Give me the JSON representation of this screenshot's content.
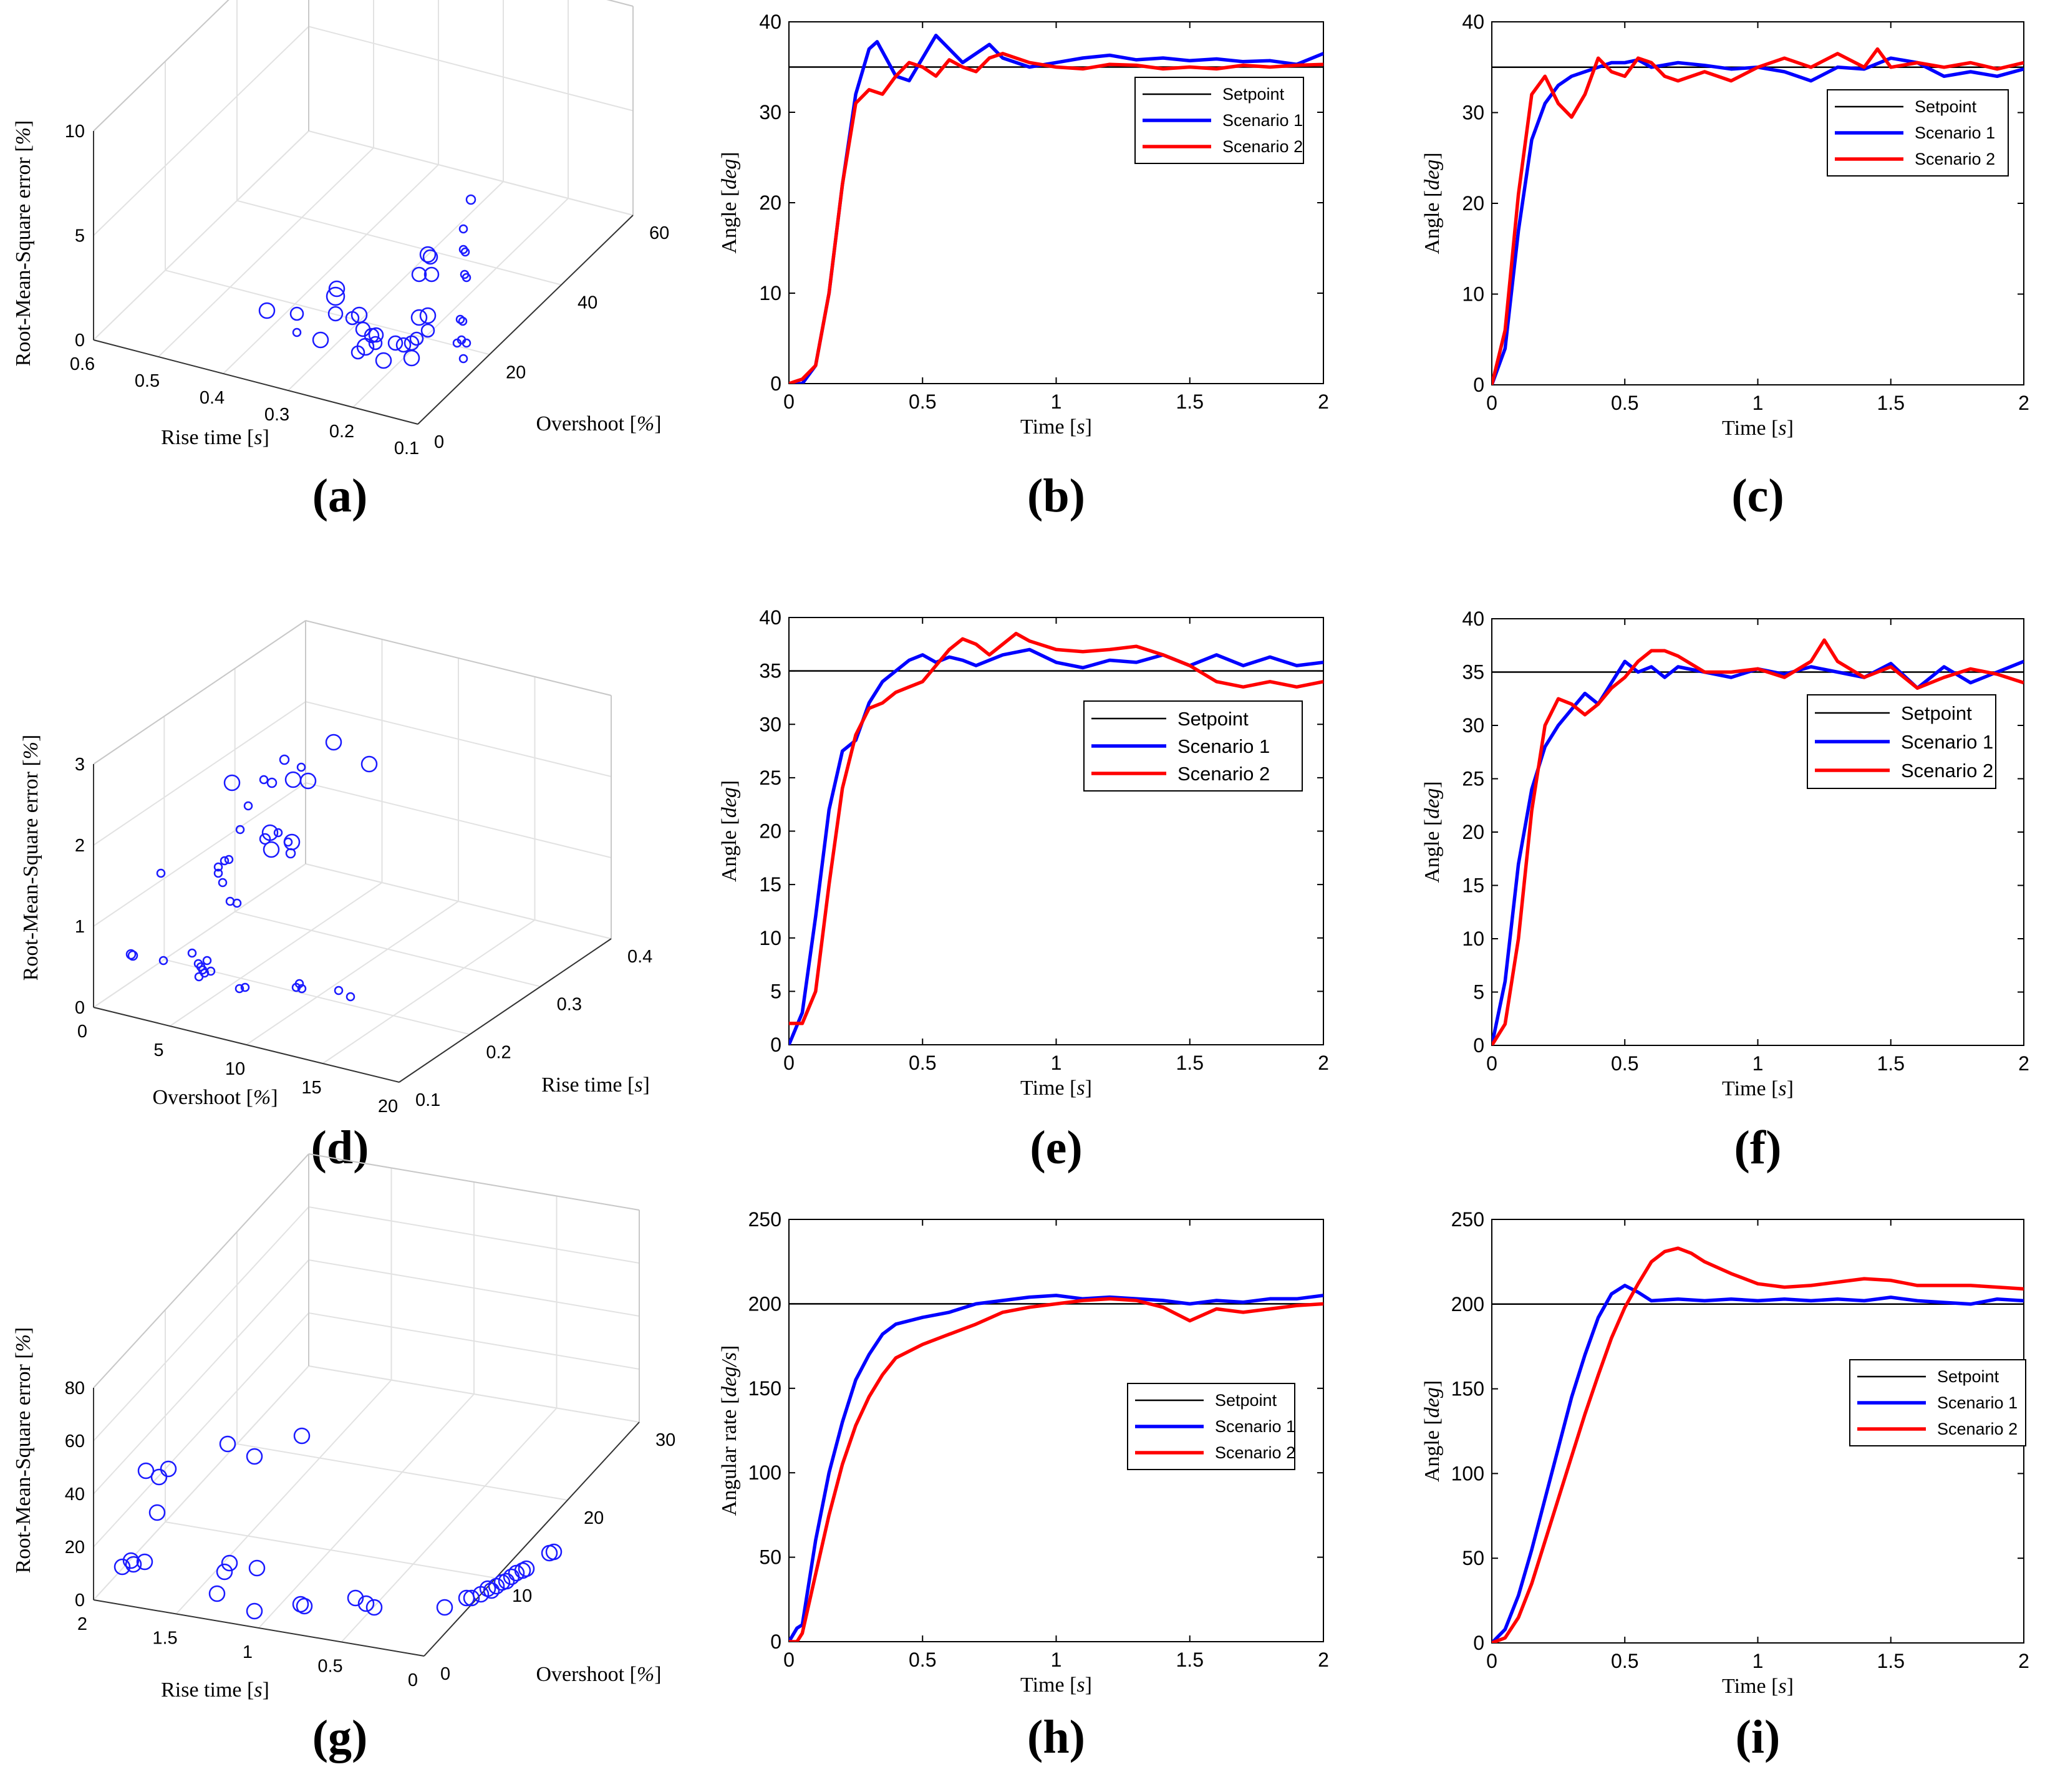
{
  "chart_data": [
    {
      "id": "a",
      "type": "scatter3d",
      "caption": "(a)",
      "axes": {
        "x": {
          "label": "Rise time [s]",
          "ticks": [
            "0.6",
            "0.5",
            "0.4",
            "0.3",
            "0.2",
            "0.1"
          ]
        },
        "y": {
          "label": "Overshoot [%]",
          "ticks": [
            "0",
            "20",
            "40",
            "60"
          ]
        },
        "z": {
          "label": "Root-Mean-Square error [%]",
          "ticks": [
            "0",
            "5",
            "10"
          ]
        }
      }
    },
    {
      "id": "b",
      "type": "line",
      "caption": "(b)",
      "xlabel": "Time [s]",
      "ylabel": "Angle [deg]",
      "xlim": [
        0,
        2
      ],
      "ylim": [
        0,
        40
      ],
      "xticks": [
        "0",
        "0.5",
        "1",
        "1.5",
        "2"
      ],
      "yticks": [
        "0",
        "10",
        "20",
        "30",
        "40"
      ],
      "legend": [
        "Setpoint",
        "Scenario 1",
        "Scenario 2"
      ],
      "setpoint": 35,
      "series": [
        {
          "name": "Scenario 1",
          "color": "#0000ff",
          "x": [
            0,
            0.05,
            0.1,
            0.15,
            0.2,
            0.25,
            0.3,
            0.33,
            0.4,
            0.45,
            0.5,
            0.55,
            0.6,
            0.65,
            0.7,
            0.75,
            0.8,
            0.9,
            1.0,
            1.1,
            1.2,
            1.3,
            1.4,
            1.5,
            1.6,
            1.7,
            1.8,
            1.9,
            2.0
          ],
          "y": [
            0,
            0,
            2,
            10,
            22,
            32,
            37,
            37.8,
            34,
            33.5,
            36,
            38.5,
            37,
            35.5,
            36.5,
            37.5,
            36,
            35,
            35.5,
            36,
            36.3,
            35.8,
            36,
            35.7,
            35.9,
            35.6,
            35.7,
            35.3,
            36.5
          ]
        },
        {
          "name": "Scenario 2",
          "color": "#ff0000",
          "x": [
            0,
            0.05,
            0.1,
            0.15,
            0.2,
            0.25,
            0.3,
            0.35,
            0.4,
            0.45,
            0.5,
            0.55,
            0.6,
            0.65,
            0.7,
            0.75,
            0.8,
            0.9,
            1.0,
            1.1,
            1.2,
            1.3,
            1.4,
            1.5,
            1.6,
            1.7,
            1.8,
            1.9,
            2.0
          ],
          "y": [
            0,
            0.5,
            2,
            10,
            22,
            31,
            32.5,
            32,
            34,
            35.5,
            35,
            34,
            35.8,
            35,
            34.5,
            36,
            36.5,
            35.5,
            35,
            34.8,
            35.3,
            35.2,
            34.8,
            35,
            34.8,
            35.2,
            35,
            35.2,
            35.3
          ]
        }
      ]
    },
    {
      "id": "c",
      "type": "line",
      "caption": "(c)",
      "xlabel": "Time [s]",
      "ylabel": "Angle [deg]",
      "xlim": [
        0,
        2
      ],
      "ylim": [
        0,
        40
      ],
      "xticks": [
        "0",
        "0.5",
        "1",
        "1.5",
        "2"
      ],
      "yticks": [
        "0",
        "10",
        "20",
        "30",
        "40"
      ],
      "legend": [
        "Setpoint",
        "Scenario 1",
        "Scenario 2"
      ],
      "setpoint": 35,
      "series": [
        {
          "name": "Scenario 1",
          "color": "#0000ff",
          "x": [
            0,
            0.05,
            0.1,
            0.15,
            0.2,
            0.25,
            0.3,
            0.35,
            0.4,
            0.45,
            0.5,
            0.55,
            0.6,
            0.7,
            0.8,
            0.9,
            1.0,
            1.1,
            1.2,
            1.3,
            1.4,
            1.5,
            1.6,
            1.7,
            1.8,
            1.9,
            2.0
          ],
          "y": [
            0,
            4,
            17,
            27,
            31,
            33,
            34,
            34.5,
            35,
            35.5,
            35.5,
            35.8,
            35,
            35.5,
            35.2,
            34.8,
            35,
            34.5,
            33.5,
            35,
            34.8,
            36,
            35.5,
            34,
            34.5,
            34,
            34.8
          ]
        },
        {
          "name": "Scenario 2",
          "color": "#ff0000",
          "x": [
            0,
            0.05,
            0.1,
            0.15,
            0.2,
            0.25,
            0.3,
            0.35,
            0.4,
            0.45,
            0.5,
            0.55,
            0.6,
            0.65,
            0.7,
            0.8,
            0.9,
            1.0,
            1.1,
            1.2,
            1.3,
            1.4,
            1.45,
            1.5,
            1.6,
            1.7,
            1.8,
            1.9,
            2.0
          ],
          "y": [
            0,
            6,
            21,
            32,
            34,
            31,
            29.5,
            32,
            36,
            34.5,
            34,
            36,
            35.5,
            34,
            33.5,
            34.5,
            33.5,
            35,
            36,
            35,
            36.5,
            35,
            37,
            35,
            35.5,
            35,
            35.5,
            34.8,
            35.5
          ]
        }
      ]
    },
    {
      "id": "d",
      "type": "scatter3d",
      "caption": "(d)",
      "axes": {
        "x": {
          "label": "Overshoot [%]",
          "ticks": [
            "0",
            "5",
            "10",
            "15",
            "20"
          ]
        },
        "y": {
          "label": "Rise time [s]",
          "ticks": [
            "0.1",
            "0.2",
            "0.3",
            "0.4"
          ]
        },
        "z": {
          "label": "Root-Mean-Square error [%]",
          "ticks": [
            "0",
            "1",
            "2",
            "3"
          ]
        }
      }
    },
    {
      "id": "e",
      "type": "line",
      "caption": "(e)",
      "xlabel": "Time [s]",
      "ylabel": "Angle [deg]",
      "xlim": [
        0,
        2
      ],
      "ylim": [
        0,
        40
      ],
      "xticks": [
        "0",
        "0.5",
        "1",
        "1.5",
        "2"
      ],
      "yticks": [
        "0",
        "5",
        "10",
        "15",
        "20",
        "25",
        "30",
        "35",
        "40"
      ],
      "legend": [
        "Setpoint",
        "Scenario 1",
        "Scenario 2"
      ],
      "setpoint": 35,
      "series": [
        {
          "name": "Scenario 1",
          "color": "#0000ff",
          "x": [
            0,
            0.05,
            0.1,
            0.15,
            0.2,
            0.25,
            0.3,
            0.35,
            0.4,
            0.45,
            0.5,
            0.55,
            0.6,
            0.65,
            0.7,
            0.8,
            0.9,
            1.0,
            1.1,
            1.2,
            1.3,
            1.4,
            1.5,
            1.6,
            1.7,
            1.8,
            1.9,
            2.0
          ],
          "y": [
            0,
            3,
            12,
            22,
            27.5,
            28.5,
            32,
            34,
            35,
            36,
            36.5,
            35.8,
            36.3,
            36,
            35.5,
            36.5,
            37,
            35.8,
            35.3,
            36,
            35.8,
            36.5,
            35.5,
            36.5,
            35.5,
            36.3,
            35.5,
            35.8
          ]
        },
        {
          "name": "Scenario 2",
          "color": "#ff0000",
          "x": [
            0,
            0.05,
            0.1,
            0.15,
            0.2,
            0.25,
            0.3,
            0.35,
            0.4,
            0.45,
            0.5,
            0.55,
            0.6,
            0.65,
            0.7,
            0.75,
            0.8,
            0.85,
            0.9,
            1.0,
            1.1,
            1.2,
            1.3,
            1.4,
            1.5,
            1.6,
            1.7,
            1.8,
            1.9,
            2.0
          ],
          "y": [
            2,
            2,
            5,
            15,
            24,
            29,
            31.5,
            32,
            33,
            33.5,
            34,
            35.5,
            37,
            38,
            37.5,
            36.5,
            37.5,
            38.5,
            37.8,
            37,
            36.8,
            37,
            37.3,
            36.5,
            35.5,
            34,
            33.5,
            34,
            33.5,
            34
          ]
        }
      ]
    },
    {
      "id": "f",
      "type": "line",
      "caption": "(f)",
      "xlabel": "Time [s]",
      "ylabel": "Angle [deg]",
      "xlim": [
        0,
        2
      ],
      "ylim": [
        0,
        40
      ],
      "xticks": [
        "0",
        "0.5",
        "1",
        "1.5",
        "2"
      ],
      "yticks": [
        "0",
        "5",
        "10",
        "15",
        "20",
        "25",
        "30",
        "35",
        "40"
      ],
      "legend": [
        "Setpoint",
        "Scenario 1",
        "Scenario 2"
      ],
      "setpoint": 35,
      "series": [
        {
          "name": "Scenario 1",
          "color": "#0000ff",
          "x": [
            0,
            0.05,
            0.1,
            0.15,
            0.2,
            0.25,
            0.3,
            0.35,
            0.4,
            0.45,
            0.5,
            0.55,
            0.6,
            0.65,
            0.7,
            0.8,
            0.9,
            1.0,
            1.1,
            1.2,
            1.3,
            1.4,
            1.5,
            1.6,
            1.7,
            1.8,
            1.9,
            2.0
          ],
          "y": [
            0,
            6,
            17,
            24,
            28,
            30,
            31.5,
            33,
            32,
            34,
            36,
            35,
            35.5,
            34.5,
            35.5,
            35,
            34.5,
            35.3,
            34.8,
            35.5,
            35,
            34.5,
            35.8,
            33.5,
            35.5,
            34,
            35,
            36
          ]
        },
        {
          "name": "Scenario 2",
          "color": "#ff0000",
          "x": [
            0,
            0.05,
            0.1,
            0.15,
            0.2,
            0.25,
            0.3,
            0.35,
            0.4,
            0.45,
            0.5,
            0.55,
            0.6,
            0.65,
            0.7,
            0.8,
            0.9,
            1.0,
            1.1,
            1.2,
            1.25,
            1.3,
            1.4,
            1.5,
            1.6,
            1.7,
            1.8,
            1.9,
            2.0
          ],
          "y": [
            0,
            2,
            10,
            22,
            30,
            32.5,
            32,
            31,
            32,
            33.5,
            34.5,
            36,
            37,
            37,
            36.5,
            35,
            35,
            35.3,
            34.5,
            36,
            38,
            36,
            34.5,
            35.5,
            33.5,
            34.5,
            35.3,
            34.8,
            34
          ]
        }
      ]
    },
    {
      "id": "g",
      "type": "scatter3d",
      "caption": "(g)",
      "axes": {
        "x": {
          "label": "Rise time [s]",
          "ticks": [
            "2",
            "1.5",
            "1",
            "0.5",
            "0"
          ]
        },
        "y": {
          "label": "Overshoot [%]",
          "ticks": [
            "0",
            "10",
            "20",
            "30"
          ]
        },
        "z": {
          "label": "Root-Mean-Square error [%]",
          "ticks": [
            "0",
            "20",
            "40",
            "60",
            "80"
          ]
        }
      }
    },
    {
      "id": "h",
      "type": "line",
      "caption": "(h)",
      "xlabel": "Time [s]",
      "ylabel": "Angular rate [deg/s]",
      "xlim": [
        0,
        2
      ],
      "ylim": [
        0,
        250
      ],
      "xticks": [
        "0",
        "0.5",
        "1",
        "1.5",
        "2"
      ],
      "yticks": [
        "0",
        "50",
        "100",
        "150",
        "200",
        "250"
      ],
      "legend": [
        "Setpoint",
        "Scenario 1",
        "Scenario 2"
      ],
      "setpoint": 200,
      "series": [
        {
          "name": "Scenario 1",
          "color": "#0000ff",
          "x": [
            0,
            0.03,
            0.05,
            0.1,
            0.15,
            0.2,
            0.25,
            0.3,
            0.35,
            0.4,
            0.5,
            0.6,
            0.7,
            0.8,
            0.9,
            1.0,
            1.1,
            1.2,
            1.3,
            1.4,
            1.5,
            1.6,
            1.7,
            1.8,
            1.9,
            2.0
          ],
          "y": [
            0,
            8,
            10,
            60,
            100,
            130,
            155,
            170,
            182,
            188,
            192,
            195,
            200,
            202,
            204,
            205,
            203,
            204,
            203,
            202,
            200,
            202,
            201,
            203,
            203,
            205
          ]
        },
        {
          "name": "Scenario 2",
          "color": "#ff0000",
          "x": [
            0,
            0.03,
            0.05,
            0.1,
            0.15,
            0.2,
            0.25,
            0.3,
            0.35,
            0.4,
            0.5,
            0.6,
            0.7,
            0.8,
            0.9,
            1.0,
            1.1,
            1.2,
            1.3,
            1.4,
            1.5,
            1.6,
            1.7,
            1.8,
            1.9,
            2.0
          ],
          "y": [
            0,
            0,
            5,
            40,
            75,
            105,
            128,
            145,
            158,
            168,
            176,
            182,
            188,
            195,
            198,
            200,
            202,
            203,
            202,
            198,
            190,
            197,
            195,
            197,
            199,
            200
          ]
        }
      ]
    },
    {
      "id": "i",
      "type": "line",
      "caption": "(i)",
      "xlabel": "Time [s]",
      "ylabel": "Angle [deg]",
      "xlim": [
        0,
        2
      ],
      "ylim": [
        0,
        250
      ],
      "xticks": [
        "0",
        "0.5",
        "1",
        "1.5",
        "2"
      ],
      "yticks": [
        "0",
        "50",
        "100",
        "150",
        "200",
        "250"
      ],
      "legend": [
        "Setpoint",
        "Scenario 1",
        "Scenario 2"
      ],
      "setpoint": 200,
      "series": [
        {
          "name": "Scenario 1",
          "color": "#0000ff",
          "x": [
            0,
            0.05,
            0.1,
            0.15,
            0.2,
            0.25,
            0.3,
            0.35,
            0.4,
            0.45,
            0.5,
            0.55,
            0.6,
            0.7,
            0.8,
            0.9,
            1.0,
            1.1,
            1.2,
            1.3,
            1.4,
            1.5,
            1.6,
            1.7,
            1.8,
            1.9,
            2.0
          ],
          "y": [
            0,
            8,
            28,
            55,
            85,
            115,
            145,
            170,
            192,
            206,
            211,
            207,
            202,
            203,
            202,
            203,
            202,
            203,
            202,
            203,
            202,
            204,
            202,
            201,
            200,
            203,
            202
          ]
        },
        {
          "name": "Scenario 2",
          "color": "#ff0000",
          "x": [
            0,
            0.05,
            0.1,
            0.15,
            0.2,
            0.25,
            0.3,
            0.35,
            0.4,
            0.45,
            0.5,
            0.55,
            0.6,
            0.65,
            0.7,
            0.75,
            0.8,
            0.9,
            1.0,
            1.1,
            1.2,
            1.3,
            1.4,
            1.5,
            1.6,
            1.7,
            1.8,
            1.9,
            2.0
          ],
          "y": [
            0,
            3,
            15,
            35,
            60,
            85,
            110,
            135,
            158,
            180,
            198,
            212,
            225,
            231,
            233,
            230,
            225,
            218,
            212,
            210,
            211,
            213,
            215,
            214,
            211,
            211,
            211,
            210,
            209
          ]
        }
      ]
    }
  ]
}
